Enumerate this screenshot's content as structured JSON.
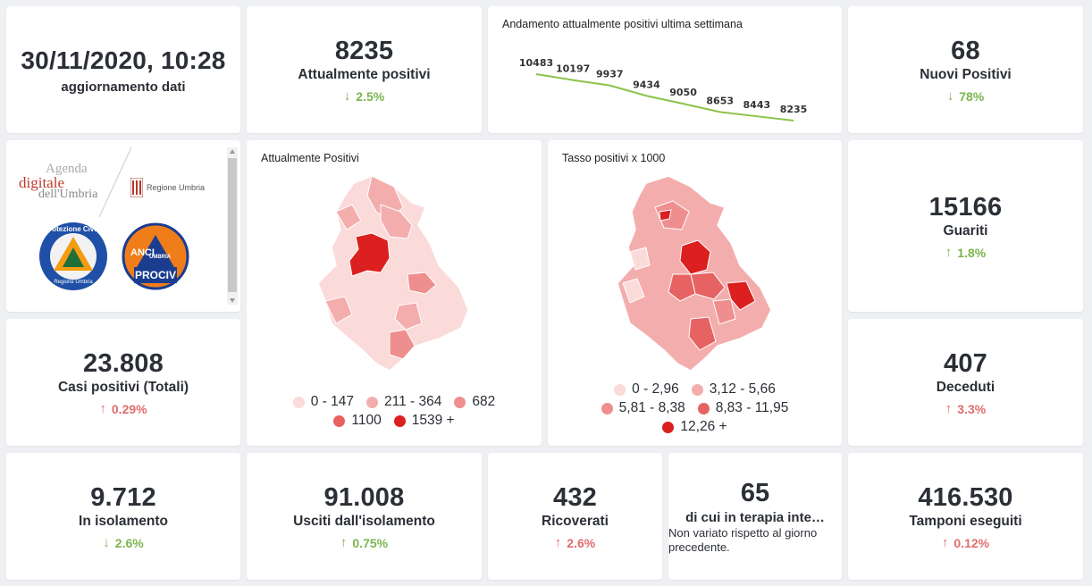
{
  "update": {
    "datetime": "30/11/2020, 10:28",
    "label": "aggiornamento dati"
  },
  "positivi": {
    "value": "8235",
    "label": "Attualmente positivi",
    "arrow": "↓",
    "delta": "2.5%"
  },
  "trend": {
    "title": "Andamento attualmente positivi ultima settimana",
    "line_color": "#8bc34a",
    "chart_data": {
      "type": "line",
      "values": [
        10483,
        10197,
        9937,
        9434,
        9050,
        8653,
        8443,
        8235
      ],
      "labels": [
        "10483",
        "10197",
        "9937",
        "9434",
        "9050",
        "8653",
        "8443",
        "8235"
      ]
    }
  },
  "nuovi": {
    "value": "68",
    "label": "Nuovi Positivi",
    "arrow": "↓",
    "delta": "78%"
  },
  "logos": {
    "agenda_line1": "Agenda",
    "agenda_line2": "digitale",
    "agenda_line3": "dell'Umbria",
    "regione": "Regione Umbria",
    "protezione": "Protezione Civile",
    "protezione_sub": "Regione Umbria",
    "anci": "ANCI",
    "anci_sub": "UMBRIA",
    "prociv": "PROCIV"
  },
  "map1": {
    "title": "Attualmente Positivi",
    "legend": [
      {
        "label": "0 - 147",
        "color": "#fbdada"
      },
      {
        "label": "211 - 364",
        "color": "#f4adad"
      },
      {
        "label": "682",
        "color": "#ef8e8e"
      },
      {
        "label": "1100",
        "color": "#e76262"
      },
      {
        "label": "1539 +",
        "color": "#dc1f1f"
      }
    ]
  },
  "map2": {
    "title": "Tasso positivi x 1000",
    "legend": [
      {
        "label": "0 - 2,96",
        "color": "#fbdada"
      },
      {
        "label": "3,12 - 5,66",
        "color": "#f4adad"
      },
      {
        "label": "5,81 - 8,38",
        "color": "#ef8e8e"
      },
      {
        "label": "8,83 - 11,95",
        "color": "#e76262"
      },
      {
        "label": "12,26 +",
        "color": "#dc1f1f"
      }
    ]
  },
  "guariti": {
    "value": "15166",
    "label": "Guariti",
    "arrow": "↑",
    "delta": "1.8%"
  },
  "casi": {
    "value": "23.808",
    "label": "Casi positivi (Totali)",
    "arrow": "↑",
    "delta": "0.29%"
  },
  "deceduti": {
    "value": "407",
    "label": "Deceduti",
    "arrow": "↑",
    "delta": "3.3%"
  },
  "isolamento": {
    "value": "9.712",
    "label": "In isolamento",
    "arrow": "↓",
    "delta": "2.6%"
  },
  "usciti": {
    "value": "91.008",
    "label": "Usciti dall'isolamento",
    "arrow": "↑",
    "delta": "0.75%"
  },
  "ricoverati": {
    "value": "432",
    "label": "Ricoverati",
    "arrow": "↑",
    "delta": "2.6%"
  },
  "terapia": {
    "value": "65",
    "label": "di cui in terapia inte…",
    "note": "Non variato rispetto al giorno precedente."
  },
  "tamponi": {
    "value": "416.530",
    "label": "Tamponi eseguiti",
    "arrow": "↑",
    "delta": "0.12%"
  }
}
